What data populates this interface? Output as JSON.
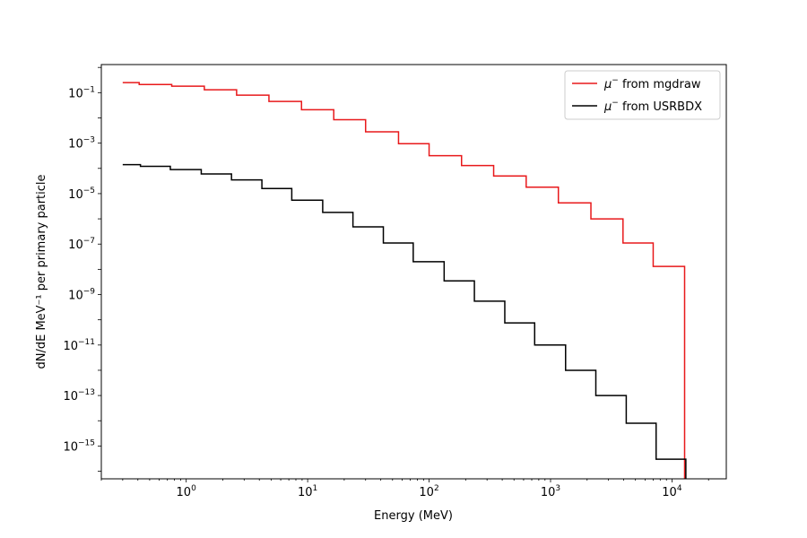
{
  "chart_data": {
    "type": "line",
    "step": true,
    "xlabel": "Energy (MeV)",
    "ylabel": "dN/dE MeV⁻¹ per primary particle",
    "xscale": "log",
    "yscale": "log",
    "xlim": [
      0.2,
      28000
    ],
    "ylim": [
      5e-17,
      1.3
    ],
    "x_ticks": [
      {
        "value": 1,
        "base": "10",
        "exp": "0"
      },
      {
        "value": 10,
        "base": "10",
        "exp": "1"
      },
      {
        "value": 100,
        "base": "10",
        "exp": "2"
      },
      {
        "value": 1000,
        "base": "10",
        "exp": "3"
      },
      {
        "value": 10000,
        "base": "10",
        "exp": "4"
      }
    ],
    "y_ticks": [
      {
        "value": 0.1,
        "base": "10",
        "exp": "−1"
      },
      {
        "value": 0.001,
        "base": "10",
        "exp": "−3"
      },
      {
        "value": 1e-05,
        "base": "10",
        "exp": "−5"
      },
      {
        "value": 1e-07,
        "base": "10",
        "exp": "−7"
      },
      {
        "value": 1e-09,
        "base": "10",
        "exp": "−9"
      },
      {
        "value": 1e-11,
        "base": "10",
        "exp": "−11"
      },
      {
        "value": 1e-13,
        "base": "10",
        "exp": "−13"
      },
      {
        "value": 1e-15,
        "base": "10",
        "exp": "−15"
      }
    ],
    "legend_position": "top-right",
    "grid": false,
    "series": [
      {
        "name": "μ⁻ from mgdraw",
        "legend_symbol": "μ",
        "legend_sup": "−",
        "legend_text": " from mgdraw",
        "color": "#e8191b",
        "edges": [
          0.3,
          0.41,
          0.76,
          1.41,
          2.6,
          4.8,
          8.9,
          16.4,
          30,
          56,
          100,
          185,
          340,
          630,
          1160,
          2150,
          3950,
          7000,
          12700
        ],
        "values": [
          0.25,
          0.21,
          0.18,
          0.13,
          0.08,
          0.045,
          0.021,
          0.0085,
          0.0028,
          0.00095,
          0.00032,
          0.00013,
          5e-05,
          1.8e-05,
          4.3e-06,
          1e-06,
          1.1e-07,
          1.3e-08
        ],
        "drop_to": 5e-17
      },
      {
        "name": "μ⁻ from USRBDX",
        "legend_symbol": "μ",
        "legend_sup": "−",
        "legend_text": " from USRBDX",
        "color": "#000000",
        "edges": [
          0.3,
          0.42,
          0.74,
          1.33,
          2.36,
          4.2,
          7.4,
          13.3,
          23.6,
          42,
          74,
          133,
          236,
          420,
          740,
          1330,
          2360,
          4200,
          7400,
          13000
        ],
        "values": [
          0.00014,
          0.00012,
          9e-05,
          6e-05,
          3.5e-05,
          1.6e-05,
          5.5e-06,
          1.8e-06,
          4.8e-07,
          1.1e-07,
          2e-08,
          3.5e-09,
          5.5e-10,
          7.5e-11,
          1e-11,
          1e-12,
          1e-13,
          8e-15,
          3e-16
        ],
        "drop_to": 5e-17
      }
    ]
  }
}
